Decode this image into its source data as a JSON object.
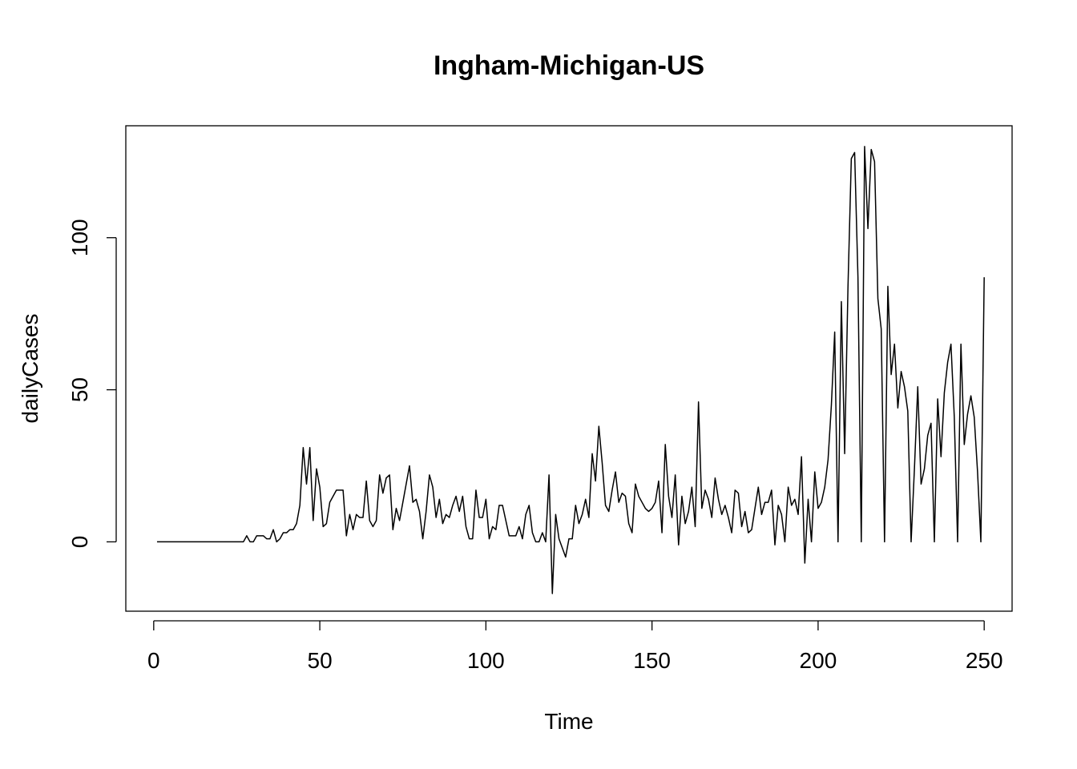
{
  "chart_data": {
    "type": "line",
    "title": "Ingham-Michigan-US",
    "xlabel": "Time",
    "ylabel": "dailyCases",
    "xlim": [
      -8.4,
      258.4
    ],
    "ylim": [
      -22.8,
      136.8
    ],
    "x_ticks": [
      0,
      50,
      100,
      150,
      200,
      250
    ],
    "y_ticks": [
      0,
      50,
      100
    ],
    "grid": false,
    "legend": "none",
    "line_color": "#000000",
    "x_start": 1,
    "series": [
      {
        "values": [
          0,
          0,
          0,
          0,
          0,
          0,
          0,
          0,
          0,
          0,
          0,
          0,
          0,
          0,
          0,
          0,
          0,
          0,
          0,
          0,
          0,
          0,
          0,
          0,
          0,
          0,
          0,
          2,
          0,
          0,
          2,
          2,
          2,
          1,
          1,
          4,
          0,
          1,
          3,
          3,
          4,
          4,
          6,
          12,
          31,
          19,
          31,
          7,
          24,
          18,
          5,
          6,
          13,
          15,
          17,
          17,
          17,
          2,
          9,
          4,
          9,
          8,
          8,
          20,
          7,
          5,
          7,
          22,
          16,
          21,
          22,
          4,
          11,
          7,
          13,
          19,
          25,
          13,
          14,
          10,
          1,
          10,
          22,
          18,
          8,
          14,
          6,
          9,
          8,
          12,
          15,
          10,
          15,
          5,
          1,
          1,
          17,
          8,
          8,
          14,
          1,
          5,
          4,
          12,
          12,
          7,
          2,
          2,
          2,
          5,
          1,
          9,
          12,
          3,
          0,
          0,
          3,
          0,
          22,
          -17,
          9,
          1,
          -2,
          -5,
          1,
          1,
          12,
          6,
          9,
          14,
          8,
          29,
          20,
          38,
          26,
          12,
          10,
          17,
          23,
          13,
          16,
          15,
          6,
          3,
          19,
          15,
          13,
          11,
          10,
          11,
          13,
          20,
          3,
          32,
          15,
          8,
          22,
          -1,
          15,
          6,
          10,
          18,
          5,
          46,
          11,
          17,
          14,
          8,
          21,
          14,
          9,
          12,
          8,
          3,
          17,
          16,
          5,
          10,
          3,
          4,
          11,
          18,
          9,
          13,
          13,
          17,
          -1,
          12,
          9,
          0,
          18,
          12,
          14,
          9,
          28,
          -7,
          14,
          0,
          23,
          11,
          13,
          18,
          27,
          45,
          69,
          0,
          79,
          29,
          84,
          126,
          128,
          87,
          0,
          130,
          103,
          129,
          125,
          80,
          70,
          0,
          84,
          55,
          65,
          44,
          56,
          51,
          43,
          0,
          24,
          51,
          19,
          24,
          35,
          39,
          0,
          47,
          28,
          49,
          59,
          65,
          41,
          0,
          65,
          32,
          42,
          48,
          41,
          23,
          0,
          87
        ]
      }
    ]
  }
}
